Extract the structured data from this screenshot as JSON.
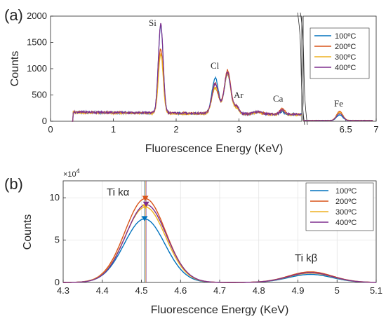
{
  "colors": {
    "100C": "#0072BD",
    "200C": "#D95319",
    "300C": "#EDB120",
    "400C": "#7E2F8E",
    "axis": "#262626",
    "grid": "#e0e0e0"
  },
  "chart_data": [
    {
      "type": "line",
      "panel_label": "(a)",
      "xlabel": "Fluorescence Energy (KeV)",
      "ylabel": "Counts",
      "ylim": [
        0,
        2000
      ],
      "yticks": [
        "0",
        "500",
        "1000",
        "1500",
        "2000"
      ],
      "x_break": true,
      "left_segment": {
        "xlim": [
          0,
          4
        ],
        "xticks": [
          "0",
          "1",
          "2",
          "3"
        ]
      },
      "right_segment": {
        "xlim": [
          5.8,
          7.0
        ],
        "xticks": [
          "6.5",
          "7"
        ]
      },
      "grid": false,
      "legend": {
        "placement": "top-right",
        "entries": [
          "100ºC",
          "200ºC",
          "300ºC",
          "400ºC"
        ]
      },
      "annotations": [
        "Si",
        "Cl",
        "Ar",
        "Ca",
        "Fe"
      ],
      "series": [
        {
          "name": "100ºC",
          "baseline": 170,
          "si": 1830,
          "cl1": 880,
          "cl2": 950,
          "ar": 320,
          "ca": 230,
          "fe": 120
        },
        {
          "name": "200ºC",
          "baseline": 170,
          "si": 1380,
          "cl1": 790,
          "cl2": 1030,
          "ar": 330,
          "ca": 290,
          "fe": 190
        },
        {
          "name": "300ºC",
          "baseline": 165,
          "si": 1280,
          "cl1": 700,
          "cl2": 960,
          "ar": 300,
          "ca": 260,
          "fe": 170
        },
        {
          "name": "400ºC",
          "baseline": 175,
          "si": 1850,
          "cl1": 760,
          "cl2": 990,
          "ar": 340,
          "ca": 250,
          "fe": 150
        }
      ]
    },
    {
      "type": "line",
      "panel_label": "(b)",
      "xlabel": "Fluorescence Energy (KeV)",
      "ylabel": "Counts",
      "y_exponent": "×10",
      "y_exponent_power": "4",
      "xlim": [
        4.3,
        5.1
      ],
      "ylim": [
        0,
        12
      ],
      "xticks": [
        "4.3",
        "4.4",
        "4.5",
        "4.6",
        "4.7",
        "4.8",
        "4.9",
        "5",
        "5.1"
      ],
      "yticks": [
        "0",
        "5",
        "10"
      ],
      "grid": true,
      "legend": {
        "placement": "top-right",
        "entries": [
          "100ºC",
          "200ºC",
          "300ºC",
          "400ºC"
        ]
      },
      "annotations": [
        "Ti kα",
        "Ti kβ"
      ],
      "series": [
        {
          "name": "100ºC",
          "ka_center": 4.508,
          "ka_peak": 7.5,
          "kb_center": 4.932,
          "kb_peak": 0.95
        },
        {
          "name": "200ºC",
          "ka_center": 4.51,
          "ka_peak": 9.9,
          "kb_center": 4.932,
          "kb_peak": 1.25
        },
        {
          "name": "300ºC",
          "ka_center": 4.51,
          "ka_peak": 8.9,
          "kb_center": 4.932,
          "kb_peak": 1.1
        },
        {
          "name": "400ºC",
          "ka_center": 4.512,
          "ka_peak": 9.2,
          "kb_center": 4.932,
          "kb_peak": 1.15
        }
      ]
    }
  ]
}
